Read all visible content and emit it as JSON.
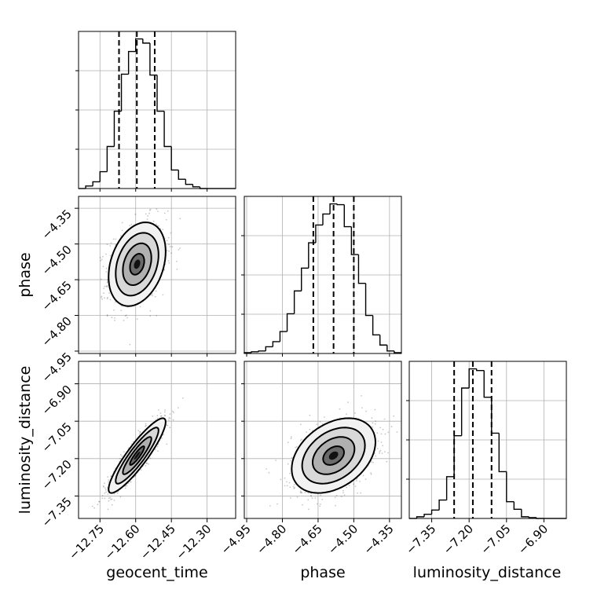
{
  "chart_data": {
    "type": "scatter",
    "parameters": [
      {
        "label": "geocent_time",
        "ticks": [
          "−12.75",
          "−12.60",
          "−12.45",
          "−12.30"
        ]
      },
      {
        "label": "phase",
        "ticks": [
          "−4.95",
          "−4.80",
          "−4.65",
          "−4.50",
          "−4.35"
        ]
      },
      {
        "label": "luminosity_distance",
        "ticks": [
          "−7.35",
          "−7.20",
          "−7.05",
          "−6.90"
        ]
      }
    ],
    "ranges": [
      [
        -12.84,
        -12.18
      ],
      [
        -4.96,
        -4.3
      ],
      [
        -7.44,
        -6.81
      ]
    ],
    "tick_values": [
      [
        -12.75,
        -12.6,
        -12.45,
        -12.3
      ],
      [
        -4.95,
        -4.8,
        -4.65,
        -4.5,
        -4.35
      ],
      [
        -7.35,
        -7.2,
        -7.05,
        -6.9
      ]
    ],
    "grid": true,
    "marginals": [
      {
        "bins": [
          -12.84,
          -12.81,
          -12.78,
          -12.75,
          -12.72,
          -12.69,
          -12.66,
          -12.63,
          -12.6,
          -12.57,
          -12.54,
          -12.51,
          -12.48,
          -12.45,
          -12.42,
          -12.39,
          -12.36,
          -12.33,
          -12.3,
          -12.27,
          -12.24,
          -12.21,
          -12.18
        ],
        "counts": [
          0,
          3,
          8,
          20,
          50,
          92,
          136,
          163,
          178,
          173,
          135,
          92,
          50,
          22,
          11,
          5,
          2,
          0,
          0,
          0,
          0,
          0
        ],
        "quantiles": [
          -12.67,
          -12.595,
          -12.52
        ]
      },
      {
        "bins": [
          -4.96,
          -4.93,
          -4.9,
          -4.87,
          -4.84,
          -4.81,
          -4.78,
          -4.75,
          -4.72,
          -4.69,
          -4.66,
          -4.63,
          -4.6,
          -4.57,
          -4.54,
          -4.51,
          -4.48,
          -4.45,
          -4.42,
          -4.39,
          -4.36,
          -4.33,
          -4.3
        ],
        "counts": [
          1,
          2,
          3,
          8,
          14,
          26,
          47,
          74,
          101,
          131,
          152,
          165,
          177,
          176,
          150,
          117,
          83,
          45,
          22,
          10,
          3,
          1
        ],
        "quantiles": [
          -4.67,
          -4.585,
          -4.5
        ]
      },
      {
        "bins": [
          -7.44,
          -7.41,
          -7.38,
          -7.35,
          -7.32,
          -7.29,
          -7.26,
          -7.23,
          -7.2,
          -7.17,
          -7.14,
          -7.11,
          -7.08,
          -7.05,
          -7.02,
          -6.99,
          -6.96,
          -6.93,
          -6.9,
          -6.87,
          -6.84,
          -6.81
        ],
        "counts": [
          0,
          2,
          5,
          10,
          22,
          50,
          99,
          156,
          179,
          177,
          145,
          102,
          56,
          20,
          11,
          2,
          1,
          0,
          0,
          0,
          0
        ],
        "quantiles": [
          -7.26,
          -7.185,
          -7.11
        ]
      }
    ],
    "joint": [
      {
        "x_param": 0,
        "y_param": 1,
        "center": [
          -12.594,
          -4.585
        ],
        "sigma": [
          0.06,
          0.088
        ],
        "correlation": 0.3
      },
      {
        "x_param": 0,
        "y_param": 2,
        "center": [
          -12.594,
          -7.188
        ],
        "sigma": [
          0.06,
          0.075
        ],
        "correlation": 0.9
      },
      {
        "x_param": 1,
        "y_param": 2,
        "center": [
          -4.585,
          -7.188
        ],
        "sigma": [
          0.088,
          0.075
        ],
        "correlation": 0.36
      }
    ],
    "contour_levels_sigma": [
      0.5,
      1.0,
      1.5,
      2.0
    ]
  }
}
